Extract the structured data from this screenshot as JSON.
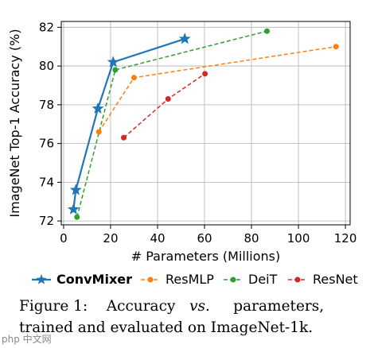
{
  "chart_data": {
    "type": "line",
    "xlabel": "# Parameters (Millions)",
    "ylabel": "ImageNet Top-1 Accuracy (%)",
    "xlim": [
      -1,
      122
    ],
    "ylim": [
      71.8,
      82.3
    ],
    "xticks": [
      0,
      20,
      40,
      60,
      80,
      100,
      120
    ],
    "yticks": [
      72,
      74,
      76,
      78,
      80,
      82
    ],
    "grid": true,
    "legend_position": "bottom",
    "series": [
      {
        "name": "ConvMixer",
        "color": "#1f77b4",
        "style": "solid",
        "marker": "star",
        "bold": true,
        "points": [
          [
            4.2,
            72.6
          ],
          [
            5.2,
            73.6
          ],
          [
            14.6,
            77.8
          ],
          [
            21.1,
            80.2
          ],
          [
            51.6,
            81.4
          ]
        ]
      },
      {
        "name": "ResMLP",
        "color": "#ff7f0e",
        "style": "dashed",
        "marker": "circle",
        "points": [
          [
            15,
            76.6
          ],
          [
            30,
            79.4
          ],
          [
            116,
            81.0
          ]
        ]
      },
      {
        "name": "DeiT",
        "color": "#2ca02c",
        "style": "dashed",
        "marker": "circle",
        "points": [
          [
            5.7,
            72.2
          ],
          [
            22,
            79.8
          ],
          [
            86.6,
            81.8
          ]
        ]
      },
      {
        "name": "ResNet",
        "color": "#d62728",
        "style": "dashed",
        "marker": "circle",
        "points": [
          [
            25.6,
            76.3
          ],
          [
            44.5,
            78.3
          ],
          [
            60.2,
            79.6
          ]
        ]
      }
    ]
  },
  "caption": {
    "line1_a": "Figure 1:",
    "line1_b": "Accuracy",
    "line1_c": "vs.",
    "line1_d": "parameters,",
    "line2": "trained and evaluated on ImageNet-1k."
  },
  "watermark": "php 中文网"
}
